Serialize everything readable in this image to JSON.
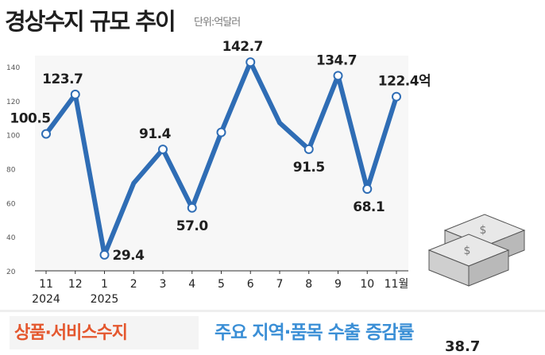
{
  "header": {
    "title": "경상수지 규모 추이",
    "unit": "단위:억달러"
  },
  "chart_data": {
    "type": "line",
    "title": "경상수지 규모 추이",
    "unit": "억달러",
    "x_labels": [
      "11",
      "12",
      "1",
      "2",
      "3",
      "4",
      "5",
      "6",
      "7",
      "8",
      "9",
      "10",
      "11월"
    ],
    "x_year_labels": [
      {
        "index": 0,
        "label": "2024"
      },
      {
        "index": 2,
        "label": "2025"
      }
    ],
    "values": [
      100.5,
      123.7,
      29.4,
      71.5,
      91.4,
      57.0,
      101.4,
      142.7,
      107.0,
      91.5,
      134.7,
      68.1,
      122.4
    ],
    "data_labels": [
      {
        "index": 0,
        "text": "100.5"
      },
      {
        "index": 1,
        "text": "123.7"
      },
      {
        "index": 2,
        "text": "29.4"
      },
      {
        "index": 4,
        "text": "91.4"
      },
      {
        "index": 5,
        "text": "57.0"
      },
      {
        "index": 7,
        "text": "142.7"
      },
      {
        "index": 9,
        "text": "91.5"
      },
      {
        "index": 10,
        "text": "134.7"
      },
      {
        "index": 11,
        "text": "68.1"
      },
      {
        "index": 12,
        "text": "122.4억"
      }
    ],
    "marker_indices": [
      0,
      1,
      2,
      4,
      5,
      6,
      7,
      9,
      10,
      11,
      12
    ],
    "yticks": [
      20,
      40,
      60,
      80,
      100,
      120,
      140
    ],
    "ylim": [
      20,
      150
    ],
    "line_color": "#2f6db5",
    "grid": false
  },
  "sections": {
    "left_title": "상품·서비스수지",
    "right_title": "주요 지역·품목 수출 증감률",
    "right_partial_value": "38.7"
  },
  "colors": {
    "accent_orange": "#e4572e",
    "accent_blue": "#3b8fd6"
  }
}
